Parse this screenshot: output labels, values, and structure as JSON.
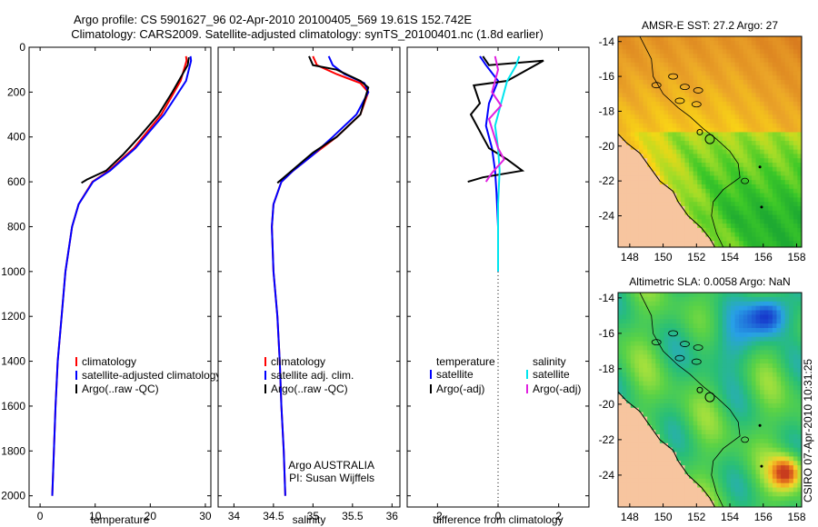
{
  "title_line1": "Argo profile: CS 5901627_96 02-Apr-2010 20100405_569 19.61S 152.742E",
  "title_line2": "Climatology: CARS2009. Satellite-adjusted climatology: synTS_20100401.nc (1.8d earlier)",
  "side_label": "CSIRO 07-Apr-2010 10:31:25",
  "colors": {
    "red": "#ff0000",
    "blue": "#0000ff",
    "black": "#000000",
    "cyan": "#00e5ee",
    "magenta": "#e020e0",
    "land": "#f7c59f"
  },
  "chart_data": [
    {
      "type": "line",
      "name": "temperature",
      "xlabel": "temperature",
      "xlim": [
        -2,
        31
      ],
      "ylim": [
        2050,
        0
      ],
      "xticks": [
        0,
        10,
        20,
        30
      ],
      "yticks": [
        0,
        200,
        400,
        600,
        800,
        1000,
        1200,
        1400,
        1600,
        1800,
        2000
      ],
      "series": [
        {
          "name": "climatology",
          "color": "red",
          "points": [
            [
              26.5,
              40
            ],
            [
              26.6,
              60
            ],
            [
              25.5,
              150
            ],
            [
              22,
              300
            ],
            [
              17,
              450
            ],
            [
              12.5,
              550
            ],
            [
              9.5,
              600
            ],
            [
              7,
              700
            ],
            [
              5.8,
              800
            ],
            [
              4.6,
              1000
            ],
            [
              3.9,
              1200
            ],
            [
              3.2,
              1400
            ],
            [
              2.8,
              1600
            ],
            [
              2.5,
              1800
            ],
            [
              2.2,
              2000
            ]
          ]
        },
        {
          "name": "satellite-adjusted climatology",
          "color": "blue",
          "points": [
            [
              27.3,
              40
            ],
            [
              27.4,
              60
            ],
            [
              26.5,
              150
            ],
            [
              22.5,
              300
            ],
            [
              17.3,
              450
            ],
            [
              12.7,
              550
            ],
            [
              9.6,
              600
            ],
            [
              7,
              700
            ],
            [
              5.8,
              800
            ],
            [
              4.6,
              1000
            ],
            [
              3.9,
              1200
            ],
            [
              3.2,
              1400
            ],
            [
              2.8,
              1600
            ],
            [
              2.5,
              1800
            ],
            [
              2.2,
              2000
            ]
          ]
        },
        {
          "name": "Argo(..raw -QC)",
          "color": "black",
          "points": [
            [
              27,
              45
            ],
            [
              26.8,
              80
            ],
            [
              24,
              200
            ],
            [
              21.5,
              300
            ],
            [
              18,
              400
            ],
            [
              15,
              480
            ],
            [
              12,
              550
            ],
            [
              8.5,
              590
            ],
            [
              7.5,
              605
            ]
          ]
        }
      ],
      "legend": [
        {
          "label": "climatology",
          "color": "red"
        },
        {
          "label": "satellite-adjusted climatology",
          "color": "blue"
        },
        {
          "label": "Argo(..raw -QC)",
          "color": "black"
        }
      ]
    },
    {
      "type": "line",
      "name": "salinity",
      "xlabel": "salinity",
      "xlim": [
        33.8,
        36.1
      ],
      "ylim": [
        2050,
        0
      ],
      "xticks": [
        34,
        34.5,
        35,
        35.5,
        36
      ],
      "series": [
        {
          "name": "climatology",
          "color": "red",
          "points": [
            [
              35.0,
              40
            ],
            [
              35.05,
              80
            ],
            [
              35.3,
              120
            ],
            [
              35.6,
              160
            ],
            [
              35.7,
              200
            ],
            [
              35.6,
              300
            ],
            [
              35.3,
              400
            ],
            [
              35.0,
              480
            ],
            [
              34.75,
              550
            ],
            [
              34.6,
              600
            ],
            [
              34.5,
              700
            ],
            [
              34.48,
              800
            ],
            [
              34.5,
              1000
            ],
            [
              34.55,
              1200
            ],
            [
              34.58,
              1400
            ],
            [
              34.6,
              1600
            ],
            [
              34.63,
              1800
            ],
            [
              34.65,
              2000
            ]
          ]
        },
        {
          "name": "satellite adj. clim.",
          "color": "blue",
          "points": [
            [
              35.2,
              40
            ],
            [
              35.25,
              80
            ],
            [
              35.4,
              120
            ],
            [
              35.65,
              160
            ],
            [
              35.7,
              200
            ],
            [
              35.55,
              300
            ],
            [
              35.25,
              400
            ],
            [
              35.0,
              480
            ],
            [
              34.75,
              550
            ],
            [
              34.6,
              600
            ],
            [
              34.5,
              700
            ],
            [
              34.48,
              800
            ],
            [
              34.5,
              1000
            ],
            [
              34.55,
              1200
            ],
            [
              34.58,
              1400
            ],
            [
              34.6,
              1600
            ],
            [
              34.63,
              1800
            ],
            [
              34.65,
              2000
            ]
          ]
        },
        {
          "name": "Argo(..raw -QC)",
          "color": "black",
          "points": [
            [
              34.95,
              40
            ],
            [
              35.0,
              80
            ],
            [
              35.3,
              100
            ],
            [
              35.6,
              150
            ],
            [
              35.7,
              180
            ],
            [
              35.6,
              300
            ],
            [
              35.3,
              400
            ],
            [
              35.0,
              470
            ],
            [
              34.8,
              530
            ],
            [
              34.6,
              590
            ],
            [
              34.55,
              605
            ]
          ]
        }
      ],
      "legend": [
        {
          "label": "climatology",
          "color": "red"
        },
        {
          "label": "satellite adj. clim.",
          "color": "blue"
        },
        {
          "label": "Argo(..raw -QC)",
          "color": "black"
        }
      ],
      "annotation_line1": "Argo AUSTRALIA",
      "annotation_line2": "PI: Susan Wijffels"
    },
    {
      "type": "line",
      "name": "difference",
      "xlabel": "difference from climatology",
      "xlim": [
        -3,
        3
      ],
      "ylim": [
        2050,
        0
      ],
      "xticks": [
        -2,
        0,
        2
      ],
      "series": [
        {
          "name": "temperature satellite",
          "color": "blue",
          "points": [
            [
              -0.6,
              40
            ],
            [
              -0.4,
              80
            ],
            [
              0.0,
              150
            ],
            [
              -0.3,
              250
            ],
            [
              -0.4,
              350
            ],
            [
              -0.2,
              450
            ],
            [
              -0.1,
              550
            ],
            [
              -0.05,
              650
            ],
            [
              0.0,
              800
            ],
            [
              0.0,
              1000
            ]
          ]
        },
        {
          "name": "temperature Argo(-adj)",
          "color": "black",
          "points": [
            [
              -0.5,
              40
            ],
            [
              -0.3,
              80
            ],
            [
              1.5,
              60
            ],
            [
              0.3,
              150
            ],
            [
              -0.8,
              170
            ],
            [
              -0.6,
              250
            ],
            [
              -0.9,
              300
            ],
            [
              -0.5,
              400
            ],
            [
              -0.3,
              450
            ],
            [
              0.3,
              500
            ],
            [
              0.8,
              550
            ],
            [
              -0.5,
              580
            ],
            [
              -1.0,
              600
            ]
          ]
        },
        {
          "name": "salinity satellite",
          "color": "cyan",
          "points": [
            [
              0.7,
              40
            ],
            [
              0.6,
              80
            ],
            [
              0.3,
              150
            ],
            [
              0.1,
              250
            ],
            [
              -0.1,
              350
            ],
            [
              0.0,
              450
            ],
            [
              0.05,
              550
            ],
            [
              0.0,
              700
            ],
            [
              0.0,
              850
            ],
            [
              0.0,
              1000
            ]
          ]
        },
        {
          "name": "salinity Argo(-adj)",
          "color": "magenta",
          "points": [
            [
              -0.1,
              40
            ],
            [
              0.0,
              100
            ],
            [
              -0.2,
              200
            ],
            [
              0.1,
              260
            ],
            [
              -0.3,
              320
            ],
            [
              0.0,
              450
            ],
            [
              0.2,
              500
            ],
            [
              -0.2,
              560
            ],
            [
              -0.4,
              600
            ]
          ]
        }
      ],
      "zero_line": 0,
      "legend_temperature_header": "temperature",
      "legend_salinity_header": "salinity",
      "legend": [
        {
          "label": "satellite",
          "color": "blue"
        },
        {
          "label": "Argo(-adj)",
          "color": "black"
        },
        {
          "label": "satellite",
          "color": "cyan"
        },
        {
          "label": "Argo(-adj)",
          "color": "magenta"
        }
      ]
    },
    {
      "type": "heatmap",
      "name": "sst-map",
      "title": "AMSR-E SST: 27.2 Argo: 27",
      "xlim": [
        147.3,
        158.3
      ],
      "ylim": [
        -25.8,
        -13.7
      ],
      "xticks": [
        148,
        150,
        152,
        154,
        156,
        158
      ],
      "yticks": [
        -14,
        -16,
        -18,
        -20,
        -22,
        -24
      ]
    },
    {
      "type": "heatmap",
      "name": "sla-map",
      "title": "Altimetric SLA: 0.0058 Argo: NaN",
      "xlim": [
        147.3,
        158.3
      ],
      "ylim": [
        -25.8,
        -13.7
      ],
      "xticks": [
        148,
        150,
        152,
        154,
        156,
        158
      ],
      "yticks": [
        -14,
        -16,
        -18,
        -20,
        -22,
        -24
      ]
    }
  ]
}
